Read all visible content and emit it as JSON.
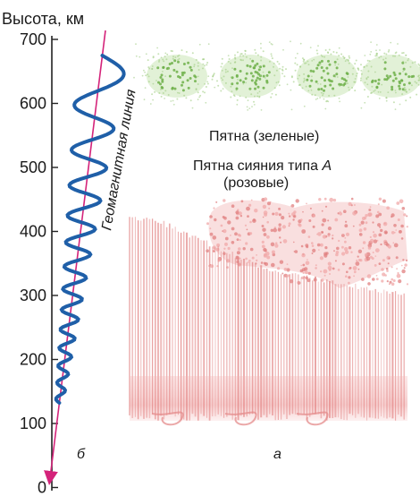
{
  "axis": {
    "title": "Высота, км",
    "ticks": [
      "700",
      "600",
      "500",
      "400",
      "300",
      "200",
      "100",
      "0"
    ]
  },
  "labels": {
    "geomagnetic_line": "Геомагнитная линия",
    "green_patches": "Пятна (зеленые)",
    "pink_patches_line1": "Пятна сияния типа ",
    "pink_patches_type": "A",
    "pink_patches_line2": "(розовые)",
    "panel_b": "б",
    "panel_a": "а"
  },
  "colors": {
    "green": "#7fbf5a",
    "pink": "#e88a8a",
    "field_line": "#d4237a",
    "wave": "#1f5fa8",
    "axis": "#222222"
  }
}
